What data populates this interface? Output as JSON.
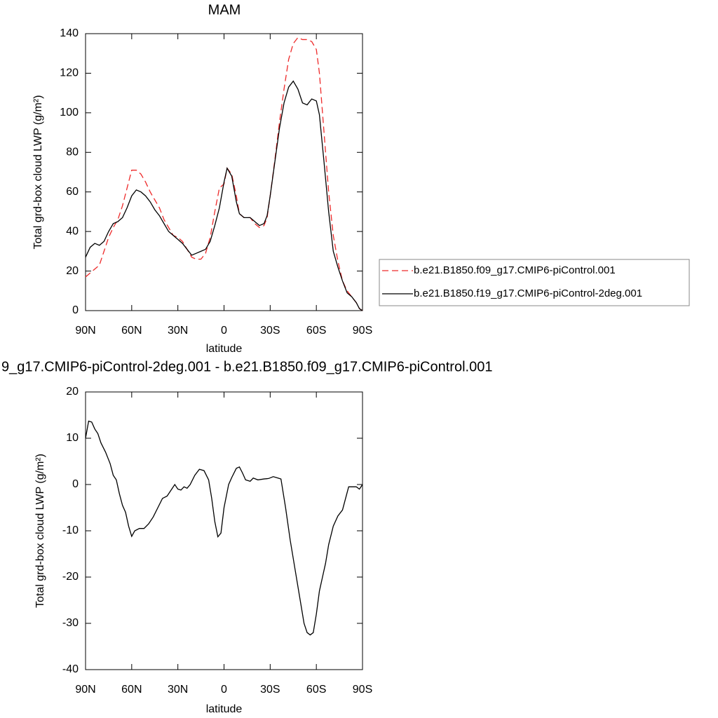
{
  "chart_data": [
    {
      "type": "line",
      "title": "MAM",
      "x_label": "latitude",
      "y_label": "Total grd-box cloud LWP (g/m²)",
      "x": [
        90,
        87,
        84,
        81,
        78,
        75,
        72,
        69,
        66,
        63,
        60,
        57,
        54,
        51,
        48,
        45,
        42,
        39,
        36,
        33,
        30,
        27,
        24,
        21,
        18,
        15,
        12,
        9,
        6,
        3,
        0,
        -2,
        -5,
        -8,
        -10,
        -13,
        -17,
        -20,
        -23,
        -26,
        -28,
        -30,
        -33,
        -36,
        -39,
        -42,
        -45,
        -48,
        -51,
        -54,
        -57,
        -60,
        -62,
        -65,
        -68,
        -71,
        -74,
        -77,
        -80,
        -83,
        -86,
        -88,
        -90
      ],
      "series": [
        {
          "name": "b.e21.B1850.f09_g17.CMIP6-piControl.001",
          "color": "#ee2a2a",
          "line_style": "dashed",
          "values": [
            17,
            19,
            21,
            23,
            30,
            37,
            42,
            46,
            53,
            62,
            71,
            71,
            69,
            65,
            60,
            56,
            52,
            46,
            42,
            38,
            37,
            35,
            31,
            27,
            26,
            26,
            29,
            37,
            50,
            62,
            64,
            72,
            69,
            58,
            49,
            47,
            47,
            44,
            42,
            43,
            47,
            58,
            76,
            95,
            112,
            127,
            135,
            138,
            137,
            137,
            136,
            132,
            120,
            90,
            60,
            38,
            25,
            15,
            10,
            7,
            4,
            1,
            0
          ]
        },
        {
          "name": "b.e21.B1850.f19_g17.CMIP6-piControl-2deg.001",
          "color": "#000000",
          "line_style": "solid",
          "values": [
            27,
            32,
            34,
            33,
            35,
            40,
            44,
            45,
            47,
            52,
            58,
            61,
            60,
            58,
            55,
            51,
            48,
            44,
            40,
            38,
            36,
            34,
            31,
            28,
            29,
            30,
            31,
            35,
            43,
            52,
            65,
            72,
            68,
            55,
            49,
            47,
            47,
            45,
            43,
            44,
            48,
            58,
            75,
            92,
            105,
            113,
            116,
            112,
            105,
            104,
            107,
            106,
            99,
            75,
            50,
            30,
            22,
            15,
            9,
            7,
            4,
            1,
            0
          ]
        }
      ],
      "xlim": [
        90,
        -90
      ],
      "xticks": [
        {
          "value": 90,
          "label": "90N"
        },
        {
          "value": 60,
          "label": "60N"
        },
        {
          "value": 30,
          "label": "30N"
        },
        0,
        {
          "value": -30,
          "label": "30S"
        },
        {
          "value": -60,
          "label": "60S"
        },
        {
          "value": -90,
          "label": "90S"
        }
      ],
      "ylim": [
        0,
        140
      ],
      "yticks": [
        0,
        20,
        40,
        60,
        80,
        100,
        120,
        140
      ],
      "legend": "right"
    },
    {
      "type": "line",
      "title": "9_g17.CMIP6-piControl-2deg.001 - b.e21.B1850.f09_g17.CMIP6-piControl.001",
      "x_label": "latitude",
      "y_label": "Total grd-box cloud LWP (g/m²)",
      "x": [
        90,
        88,
        86,
        84,
        82,
        80,
        77,
        74,
        72,
        70,
        68,
        66,
        64,
        62,
        60,
        58,
        55,
        52,
        49,
        46,
        43,
        40,
        37,
        34,
        32,
        30,
        28,
        26,
        24,
        22,
        19,
        16,
        13,
        10,
        8,
        6,
        4,
        2,
        0,
        -3,
        -5,
        -8,
        -10,
        -12,
        -14,
        -17,
        -19,
        -22,
        -26,
        -29,
        -32,
        -35,
        -37,
        -40,
        -43,
        -46,
        -49,
        -52,
        -54,
        -56,
        -58,
        -60,
        -62,
        -64,
        -66,
        -68,
        -71,
        -74,
        -77,
        -79,
        -81,
        -86,
        -88,
        -90
      ],
      "values": [
        10,
        13.7,
        13.5,
        12,
        11,
        9,
        7,
        4.5,
        2,
        1,
        -2,
        -4.5,
        -6,
        -9,
        -11.2,
        -10,
        -9.5,
        -9.5,
        -8.5,
        -7,
        -5,
        -3,
        -2.5,
        -1,
        0,
        -1,
        -1.2,
        -0.5,
        -0.8,
        0,
        2,
        3.3,
        3,
        1,
        -3,
        -8,
        -11.3,
        -10.5,
        -5,
        0,
        1.5,
        3.5,
        3.8,
        2.5,
        1,
        0.7,
        1.4,
        1,
        1.2,
        1.3,
        1.7,
        1.4,
        1.2,
        -5,
        -12,
        -18,
        -24,
        -30,
        -32,
        -32.5,
        -32,
        -28,
        -23,
        -20,
        -17,
        -13,
        -9,
        -6.8,
        -5.5,
        -3,
        -0.5,
        -0.5,
        -1,
        0
      ],
      "color": "#000000",
      "xlim": [
        90,
        -90
      ],
      "xticks": [
        {
          "value": 90,
          "label": "90N"
        },
        {
          "value": 60,
          "label": "60N"
        },
        {
          "value": 30,
          "label": "30N"
        },
        0,
        {
          "value": -30,
          "label": "30S"
        },
        {
          "value": -60,
          "label": "60S"
        },
        {
          "value": -90,
          "label": "90S"
        }
      ],
      "ylim": [
        -40,
        20
      ],
      "yticks": [
        -40,
        -30,
        -20,
        -10,
        0,
        10,
        20
      ]
    }
  ]
}
